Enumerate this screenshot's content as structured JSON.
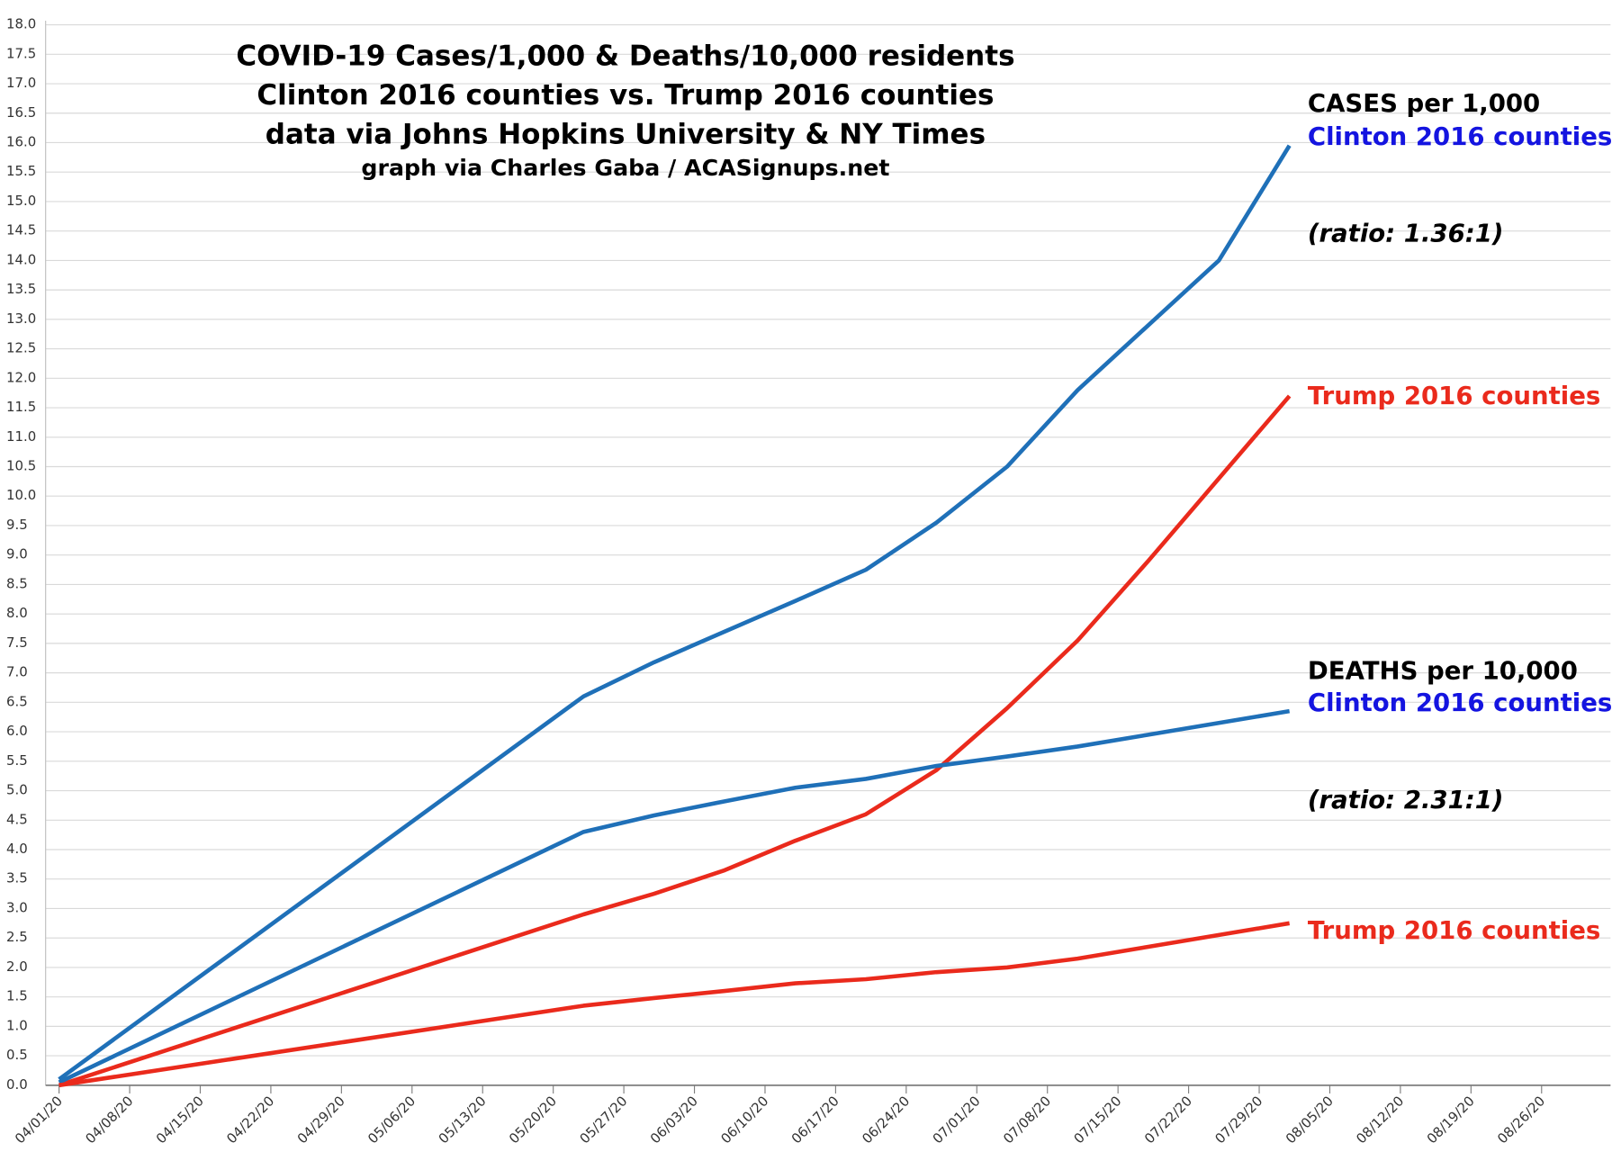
{
  "chart_data": {
    "type": "line",
    "title": [
      "COVID-19 Cases/1,000 & Deaths/10,000 residents",
      "Clinton 2016 counties vs. Trump 2016 counties",
      "data via Johns Hopkins University & NY Times"
    ],
    "subtitle": "graph via Charles Gaba / ACASignups.net",
    "annotations": [
      "CASES per 1,000",
      "(ratio: 1.36:1)",
      "DEATHS per 10,000",
      "(ratio: 2.31:1)"
    ],
    "x": [
      "04/01/20",
      "05/23/20",
      "05/30/20",
      "06/06/20",
      "06/13/20",
      "06/20/20",
      "06/27/20",
      "07/04/20",
      "07/11/20",
      "07/18/20",
      "07/25/20",
      "08/01/20"
    ],
    "series": [
      {
        "name": "Clinton 2016 counties",
        "color": "#1f70b8",
        "label_color": "#1414e0",
        "values": [
          0.1,
          6.6,
          7.18,
          7.7,
          8.22,
          8.75,
          9.55,
          10.5,
          11.8,
          12.9,
          14.0,
          15.95
        ]
      },
      {
        "name": "Trump 2016 counties",
        "color": "#ea2a1c",
        "label_color": "#ea2a1c",
        "values": [
          0.0,
          2.9,
          3.25,
          3.65,
          4.15,
          4.6,
          5.35,
          6.4,
          7.55,
          8.9,
          10.3,
          11.7
        ]
      },
      {
        "name": "Clinton 2016 counties",
        "color": "#1f70b8",
        "label_color": "#1414e0",
        "values": [
          0.05,
          4.3,
          4.58,
          4.82,
          5.05,
          5.2,
          5.42,
          5.58,
          5.75,
          5.95,
          6.15,
          6.35
        ]
      },
      {
        "name": "Trump 2016 counties",
        "color": "#ea2a1c",
        "label_color": "#ea2a1c",
        "values": [
          0.0,
          1.35,
          1.48,
          1.6,
          1.73,
          1.8,
          1.92,
          2.0,
          2.15,
          2.35,
          2.55,
          2.75
        ]
      }
    ],
    "xlim": [
      "03/30/20",
      "09/02/20"
    ],
    "xticks": [
      "04/01/20",
      "04/08/20",
      "04/15/20",
      "04/22/20",
      "04/29/20",
      "05/06/20",
      "05/13/20",
      "05/20/20",
      "05/27/20",
      "06/03/20",
      "06/10/20",
      "06/17/20",
      "06/24/20",
      "07/01/20",
      "07/08/20",
      "07/15/20",
      "07/22/20",
      "07/29/20",
      "08/05/20",
      "08/12/20",
      "08/19/20",
      "08/26/20"
    ],
    "ylim": [
      0,
      18
    ],
    "yticks": [
      {
        "value": 0,
        "label": "0.0"
      },
      0.5,
      {
        "value": 1,
        "label": "1.0"
      },
      1.5,
      {
        "value": 2,
        "label": "2.0"
      },
      2.5,
      {
        "value": 3,
        "label": "3.0"
      },
      3.5,
      {
        "value": 4,
        "label": "4.0"
      },
      4.5,
      {
        "value": 5,
        "label": "5.0"
      },
      5.5,
      {
        "value": 6,
        "label": "6.0"
      },
      6.5,
      {
        "value": 7,
        "label": "7.0"
      },
      7.5,
      {
        "value": 8,
        "label": "8.0"
      },
      8.5,
      {
        "value": 9,
        "label": "9.0"
      },
      9.5,
      {
        "value": 10,
        "label": "10.0"
      },
      10.5,
      {
        "value": 11,
        "label": "11.0"
      },
      11.5,
      {
        "value": 12,
        "label": "12.0"
      },
      12.5,
      {
        "value": 13,
        "label": "13.0"
      },
      13.5,
      {
        "value": 14,
        "label": "14.0"
      },
      14.5,
      {
        "value": 15,
        "label": "15.0"
      },
      15.5,
      {
        "value": 16,
        "label": "16.0"
      },
      16.5,
      {
        "value": 17,
        "label": "17.0"
      },
      17.5,
      {
        "value": 18,
        "label": "18.0"
      }
    ],
    "grid": true
  }
}
